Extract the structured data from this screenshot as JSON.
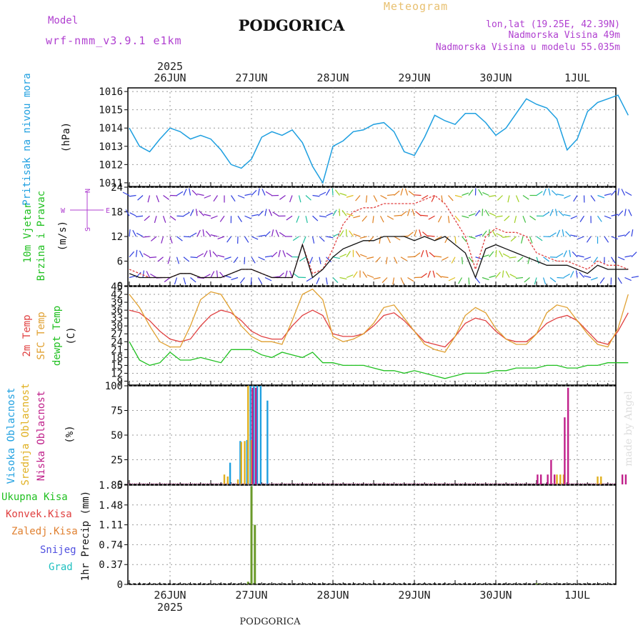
{
  "header": {
    "model_label": "Model",
    "model_name": "wrf-nmm_v3.9.1 e1km",
    "title": "PODGORICA",
    "subtitle": "Meteogram",
    "coords": "lon,lat (19.25E, 42.39N)",
    "elevation": "Nadmorska Visina 49m",
    "model_elevation": "Nadmorska Visina u modelu 55.035m",
    "year": "2025",
    "bottom_title": "PODGORICA",
    "credit": "made by Angel"
  },
  "colors": {
    "pressure": "#1e9fe0",
    "temp2m": "#e04040",
    "sfc_temp": "#e0a030",
    "dewpt": "#20c020",
    "high_cloud": "#20a0e0",
    "mid_cloud": "#e0b020",
    "low_cloud": "#c0208a",
    "total_precip": "#6a9a2a",
    "wind_label": "#20c020",
    "axis_label_blue": "#20a0e0",
    "magenta": "#b040d0"
  },
  "time_axis": {
    "labels": [
      "26JUN",
      "27JUN",
      "28JUN",
      "29JUN",
      "30JUN",
      "1JUL"
    ]
  },
  "chart_data": [
    {
      "type": "line",
      "panel": "pressure",
      "ylabel_side": "Pritisak na nivou mora",
      "ylabel_unit": "(hPa)",
      "ylim": [
        1010.8,
        1016.2
      ],
      "yticks": [
        1011,
        1012,
        1013,
        1014,
        1015,
        1016
      ],
      "grid": true,
      "x_hours": [
        0,
        3,
        6,
        9,
        12,
        15,
        18,
        21,
        24,
        27,
        30,
        33,
        36,
        39,
        42,
        45,
        48,
        51,
        54,
        57,
        60,
        63,
        66,
        69,
        72,
        75,
        78,
        81,
        84,
        87,
        90,
        93,
        96,
        99,
        102,
        105,
        108,
        111,
        114,
        117,
        120,
        123,
        126,
        129,
        132,
        135,
        138,
        141,
        144,
        147
      ],
      "values": [
        1014.0,
        1013.0,
        1012.7,
        1013.4,
        1014.0,
        1013.8,
        1013.4,
        1013.6,
        1013.4,
        1012.8,
        1012.0,
        1011.8,
        1012.3,
        1013.5,
        1013.8,
        1013.6,
        1013.9,
        1013.2,
        1011.9,
        1011.0,
        1013.0,
        1013.3,
        1013.8,
        1013.9,
        1014.2,
        1014.3,
        1013.8,
        1012.7,
        1012.5,
        1013.5,
        1014.7,
        1014.4,
        1014.2,
        1014.8,
        1014.8,
        1014.3,
        1013.6,
        1014.0,
        1014.8,
        1015.6,
        1015.3,
        1015.1,
        1014.5,
        1012.8,
        1013.4,
        1014.9,
        1015.4,
        1015.6,
        1015.8,
        1014.7
      ]
    },
    {
      "type": "line",
      "panel": "wind",
      "ylabel_side_1": "10m Vjetar",
      "ylabel_side_2": "Brzina i Pravac",
      "ylabel_unit": "(m/s)",
      "ylim": [
        0,
        24
      ],
      "yticks": [
        0,
        6,
        12,
        18,
        24
      ],
      "compass": {
        "n": "N",
        "s": "S",
        "e": "E",
        "w": "W"
      },
      "x_hours": [
        0,
        3,
        6,
        9,
        12,
        15,
        18,
        21,
        24,
        27,
        30,
        33,
        36,
        39,
        42,
        45,
        48,
        51,
        54,
        57,
        60,
        63,
        66,
        69,
        72,
        75,
        78,
        81,
        84,
        87,
        90,
        93,
        96,
        99,
        102,
        105,
        108,
        111,
        114,
        117,
        120,
        123,
        126,
        129,
        132,
        135,
        138,
        141,
        144,
        147
      ],
      "speed": [
        3,
        2,
        2,
        2,
        2,
        3,
        3,
        2,
        2,
        2,
        3,
        4,
        4,
        3,
        2,
        2,
        2,
        10,
        2,
        4,
        7,
        9,
        10,
        11,
        11,
        12,
        12,
        12,
        11,
        12,
        11,
        12,
        10,
        8,
        2,
        9,
        10,
        9,
        8,
        7,
        6,
        5,
        5,
        5,
        4,
        3,
        5,
        4,
        4,
        4
      ],
      "gust": [
        4,
        3,
        2,
        2,
        2,
        3,
        3,
        2,
        2,
        2,
        3,
        4,
        4,
        3,
        2,
        2,
        2,
        10,
        3,
        4,
        9,
        15,
        18,
        19,
        19,
        20,
        20,
        20,
        20,
        21,
        22,
        20,
        16,
        12,
        4,
        12,
        14,
        13,
        13,
        12,
        8,
        7,
        6,
        6,
        5,
        4,
        6,
        5,
        5,
        4
      ]
    },
    {
      "type": "line",
      "panel": "temperature",
      "ylabel_side_1": "2m Temp",
      "ylabel_side_2": "SFC Temp",
      "ylabel_side_3": "dewpt Temp",
      "ylabel_unit": "(C)",
      "ylim": [
        7.5,
        45
      ],
      "yticks": [
        9,
        12,
        15,
        18,
        21,
        24,
        27,
        30,
        33,
        36,
        39,
        42,
        45
      ],
      "x_hours": [
        0,
        3,
        6,
        9,
        12,
        15,
        18,
        21,
        24,
        27,
        30,
        33,
        36,
        39,
        42,
        45,
        48,
        51,
        54,
        57,
        60,
        63,
        66,
        69,
        72,
        75,
        78,
        81,
        84,
        87,
        90,
        93,
        96,
        99,
        102,
        105,
        108,
        111,
        114,
        117,
        120,
        123,
        126,
        129,
        132,
        135,
        138,
        141,
        144,
        147
      ],
      "series": [
        {
          "name": "2m Temp",
          "values": [
            36,
            35,
            32,
            28,
            25,
            24,
            25,
            30,
            34,
            36,
            35,
            32,
            28,
            26,
            25,
            25,
            30,
            34,
            36,
            34,
            27,
            26,
            26,
            27,
            30,
            34,
            35,
            32,
            28,
            24,
            23,
            22,
            26,
            31,
            33,
            32,
            28,
            25,
            24,
            24,
            27,
            31,
            33,
            34,
            32,
            28,
            24,
            23,
            28,
            35
          ]
        },
        {
          "name": "SFC Temp",
          "values": [
            42,
            37,
            30,
            24,
            22,
            22,
            30,
            40,
            43,
            42,
            36,
            30,
            26,
            24,
            24,
            23,
            32,
            42,
            44,
            40,
            26,
            24,
            25,
            27,
            31,
            37,
            38,
            33,
            28,
            23,
            21,
            20,
            26,
            34,
            37,
            35,
            29,
            25,
            23,
            23,
            27,
            35,
            38,
            37,
            32,
            27,
            23,
            22,
            29,
            42
          ]
        },
        {
          "name": "dewpt Temp",
          "values": [
            24,
            17,
            15,
            16,
            20,
            17,
            17,
            18,
            17,
            16,
            21,
            21,
            21,
            19,
            18,
            20,
            19,
            18,
            20,
            16,
            16,
            15,
            15,
            15,
            14,
            13,
            13,
            12,
            13,
            12,
            11,
            10,
            11,
            12,
            12,
            12,
            13,
            13,
            14,
            14,
            14,
            15,
            15,
            14,
            14,
            15,
            15,
            16,
            16,
            16
          ]
        }
      ]
    },
    {
      "type": "bar",
      "panel": "cloud",
      "ylabel_side_1": "Visoka Oblacnost",
      "ylabel_side_2": "Srednja Oblacnost",
      "ylabel_side_3": "Niska Oblacnost",
      "ylabel_unit": "(%)",
      "ylim": [
        0,
        100
      ],
      "yticks": [
        0,
        25,
        50,
        75,
        100
      ],
      "series": [
        {
          "name": "Visoka Oblacnost",
          "points": [
            [
              30,
              22
            ],
            [
              33,
              44
            ],
            [
              35,
              45
            ],
            [
              36,
              100
            ],
            [
              37,
              100
            ],
            [
              38,
              100
            ],
            [
              39,
              100
            ],
            [
              41,
              85
            ]
          ]
        },
        {
          "name": "Srednja Oblacnost",
          "points": [
            [
              28,
              10
            ],
            [
              29,
              8
            ],
            [
              32,
              5
            ],
            [
              33,
              43
            ],
            [
              34,
              44
            ],
            [
              35,
              100
            ],
            [
              36,
              45
            ],
            [
              126,
              10
            ],
            [
              127,
              10
            ],
            [
              128,
              10
            ],
            [
              138,
              8
            ],
            [
              139,
              8
            ]
          ]
        },
        {
          "name": "Niska Oblacnost",
          "points": [
            [
              36,
              98
            ],
            [
              37,
              98
            ],
            [
              120,
              10
            ],
            [
              121,
              10
            ],
            [
              123,
              10
            ],
            [
              124,
              25
            ],
            [
              125,
              10
            ],
            [
              128,
              68
            ],
            [
              129,
              98
            ],
            [
              145,
              10
            ],
            [
              146,
              10
            ]
          ]
        }
      ]
    },
    {
      "type": "bar",
      "panel": "precip",
      "ylabel_side_1": "Ukupna Kisa",
      "ylabel_side_2": "Konvek.Kisa",
      "ylabel_side_3": "Zaledj.Kisa",
      "ylabel_side_4": "Snijeg",
      "ylabel_side_5": "Grad",
      "ylabel_unit": "1hr Precip (mm)",
      "ylim": [
        0,
        1.85
      ],
      "yticks": [
        0,
        0.37,
        0.74,
        1.11,
        1.48,
        1.85
      ],
      "series": [
        {
          "name": "Ukupna Kisa",
          "points": [
            [
              35,
              0.05
            ],
            [
              36,
              1.83
            ],
            [
              37,
              1.11
            ],
            [
              120,
              0.02
            ],
            [
              121,
              0.02
            ]
          ]
        }
      ]
    }
  ]
}
